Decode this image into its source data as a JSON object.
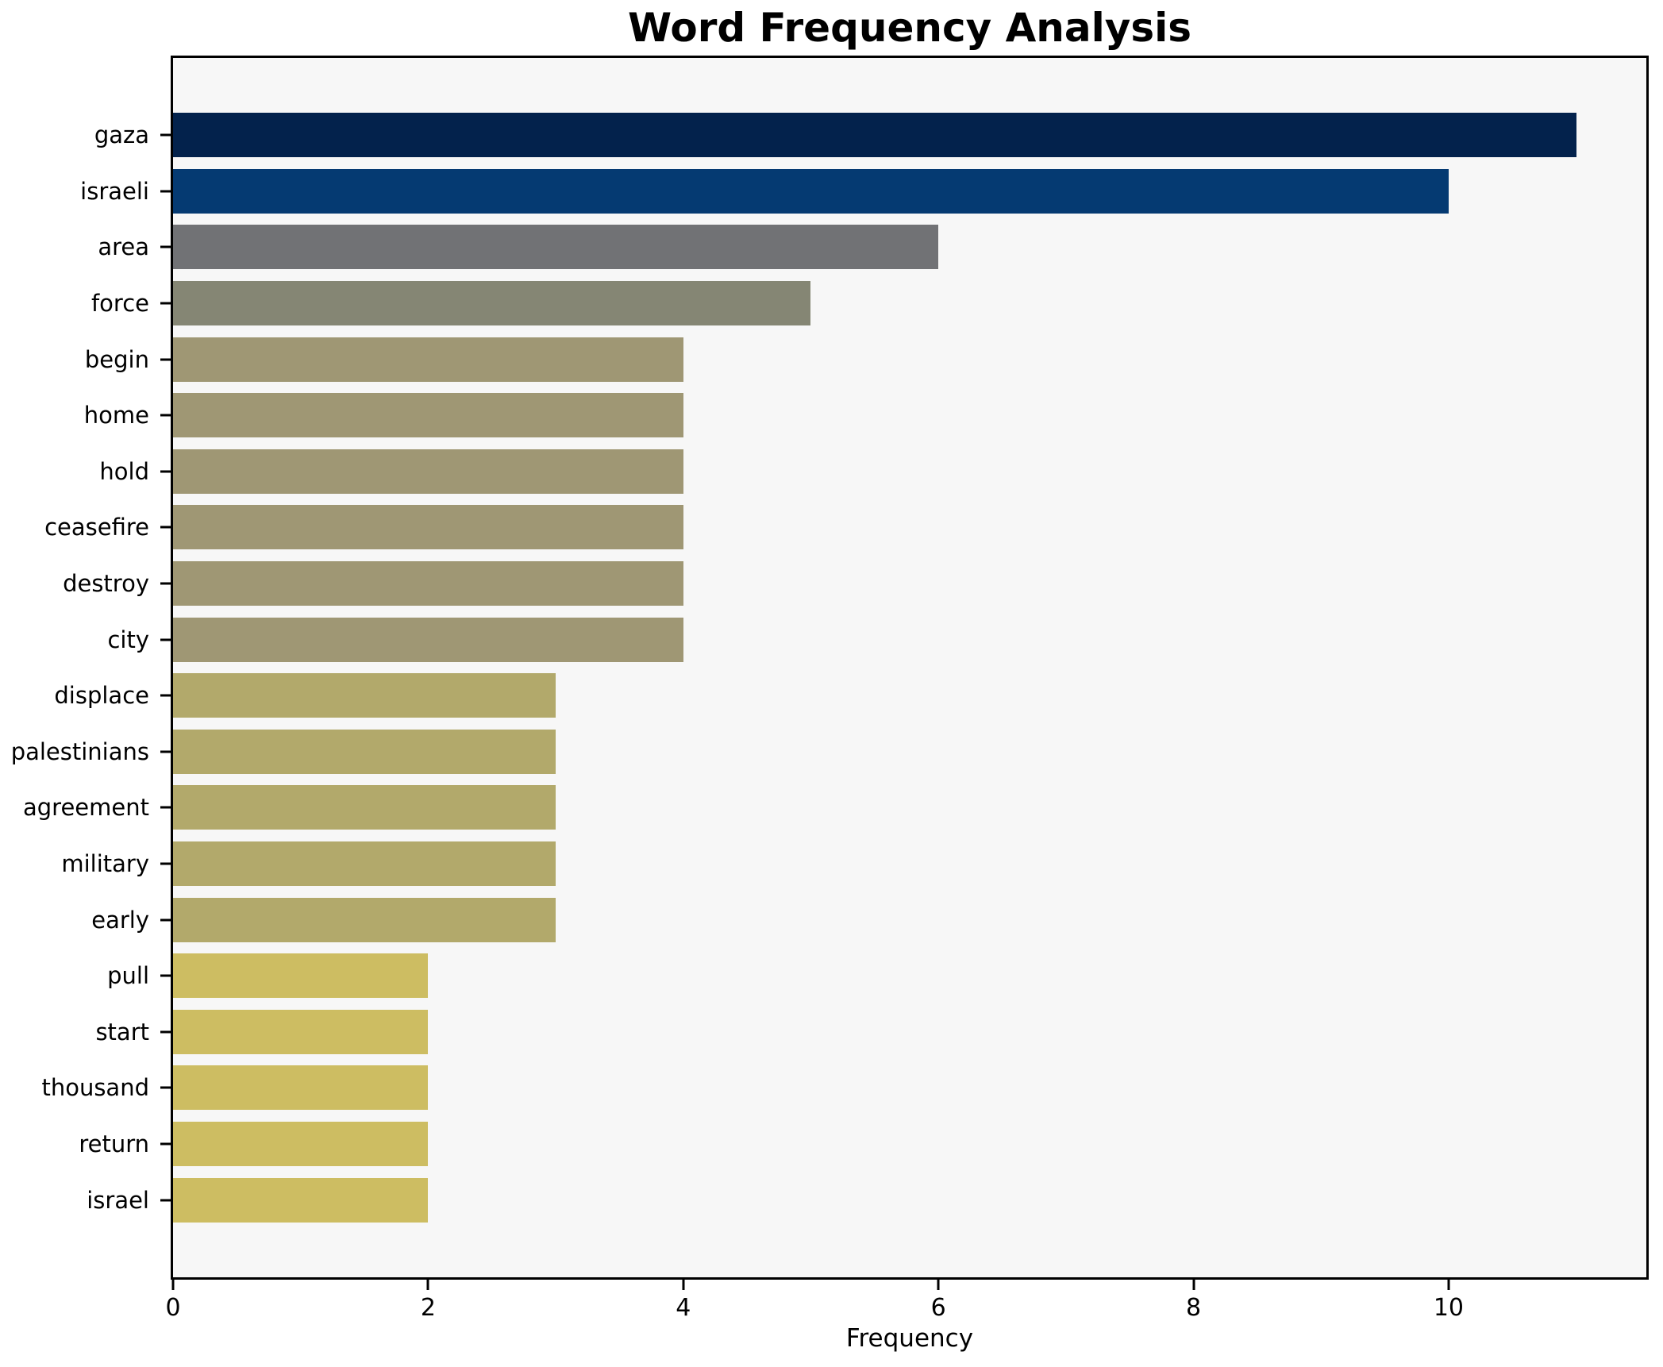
{
  "title": "Word Frequency Analysis",
  "chart_data": {
    "type": "bar",
    "orientation": "horizontal",
    "title": "Word Frequency Analysis",
    "xlabel": "Frequency",
    "ylabel": "",
    "categories": [
      "gaza",
      "israeli",
      "area",
      "force",
      "begin",
      "home",
      "hold",
      "ceasefire",
      "destroy",
      "city",
      "displace",
      "palestinians",
      "agreement",
      "military",
      "early",
      "pull",
      "start",
      "thousand",
      "return",
      "israel"
    ],
    "values": [
      11,
      10,
      6,
      5,
      4,
      4,
      4,
      4,
      4,
      4,
      3,
      3,
      3,
      3,
      3,
      2,
      2,
      2,
      2,
      2
    ],
    "bar_colors": [
      "#03224c",
      "#053a72",
      "#717275",
      "#858674",
      "#9f9774",
      "#9f9774",
      "#9f9774",
      "#9f9774",
      "#9f9774",
      "#9f9774",
      "#b2a96b",
      "#b2a96b",
      "#b2a96b",
      "#b2a96b",
      "#b2a96b",
      "#cdbd62",
      "#cdbd62",
      "#cdbd62",
      "#cdbd62",
      "#cdbd62"
    ],
    "xlim": [
      0,
      11.55
    ],
    "x_ticks": [
      "0",
      "2",
      "4",
      "6",
      "8",
      "10"
    ],
    "grid": false,
    "legend": "none",
    "plot_bg": "#f7f7f7",
    "figure_bg": "#ffffff",
    "spine_color": "#000000",
    "text_color": "#000000"
  }
}
